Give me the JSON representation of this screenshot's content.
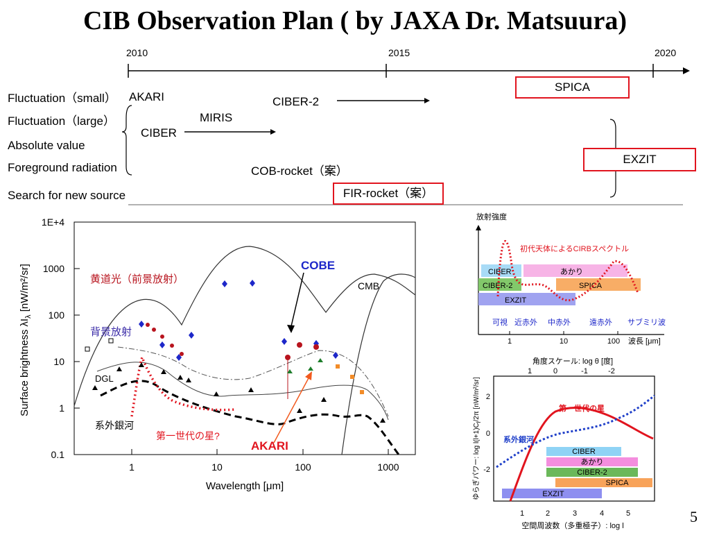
{
  "slide": {
    "title": "CIB Observation Plan ( by JAXA Dr. Matsuura)",
    "page_number": "5"
  },
  "timeline": {
    "years": [
      "2010",
      "2015",
      "2020"
    ],
    "rows": [
      "Fluctuation（small）",
      "Fluctuation（large）",
      "Absolute value",
      "Foreground radiation",
      "Search for new source"
    ],
    "missions": {
      "akari": "AKARI",
      "ciber": "CIBER",
      "miris": "MIRIS",
      "ciber2": "CIBER-2",
      "cob_rocket": "COB-rocket（案）",
      "spica": "SPICA",
      "exzit": "EXZIT",
      "fir_rocket": "FIR-rocket（案）"
    },
    "accent_color": "#e1141e"
  },
  "sed_plot": {
    "y_ticks": [
      "1E+4",
      "1000",
      "100",
      "10",
      "1",
      "0.1"
    ],
    "x_ticks": [
      "1",
      "10",
      "100",
      "1000"
    ],
    "xlabel": "Wavelength [μm]",
    "ylabel": "Surface brightness λI",
    "ylabel_sub": "λ",
    "ylabel_unit": " [nW/m²/sr]",
    "labels": {
      "zodiacal": "黄道光（前景放射）",
      "background": "背景放射",
      "dgl": "DGL",
      "galaxy": "系外銀河",
      "first_stars": "第一世代の星?",
      "cobe": "COBE",
      "cmb": "CMB",
      "akari": "AKARI"
    }
  },
  "spectrum_plot": {
    "ylabel": "放射強度",
    "curve_label": "初代天体によるCIRBスペクトル",
    "bars": [
      "CIBER",
      "あかり",
      "CIBER-2",
      "SPICA",
      "EXZIT"
    ],
    "bands": [
      "可視",
      "近赤外",
      "中赤外",
      "遠赤外",
      "サブミリ波"
    ],
    "x_ticks": [
      "1",
      "10",
      "100"
    ],
    "xlabel": "波長 [μm]"
  },
  "power_plot": {
    "top_label": "角度スケール: log θ [度]",
    "top_ticks": [
      "1",
      "0",
      "-1",
      "-2"
    ],
    "y_ticks": [
      "2",
      "0",
      "-2"
    ],
    "x_ticks": [
      "1",
      "2",
      "3",
      "4",
      "5"
    ],
    "ylabel": "ゆらぎパワー: log l(l+1)C",
    "ylabel_end": "/2π [nW/m²/sr]",
    "xlabel": "空間周波数（多重極子）: log l",
    "labels": {
      "first_stars": "第一世代の星",
      "galaxy": "系外銀河"
    },
    "bars": [
      "CIBER",
      "あかり",
      "CIBER-2",
      "SPICA",
      "EXZIT"
    ]
  }
}
